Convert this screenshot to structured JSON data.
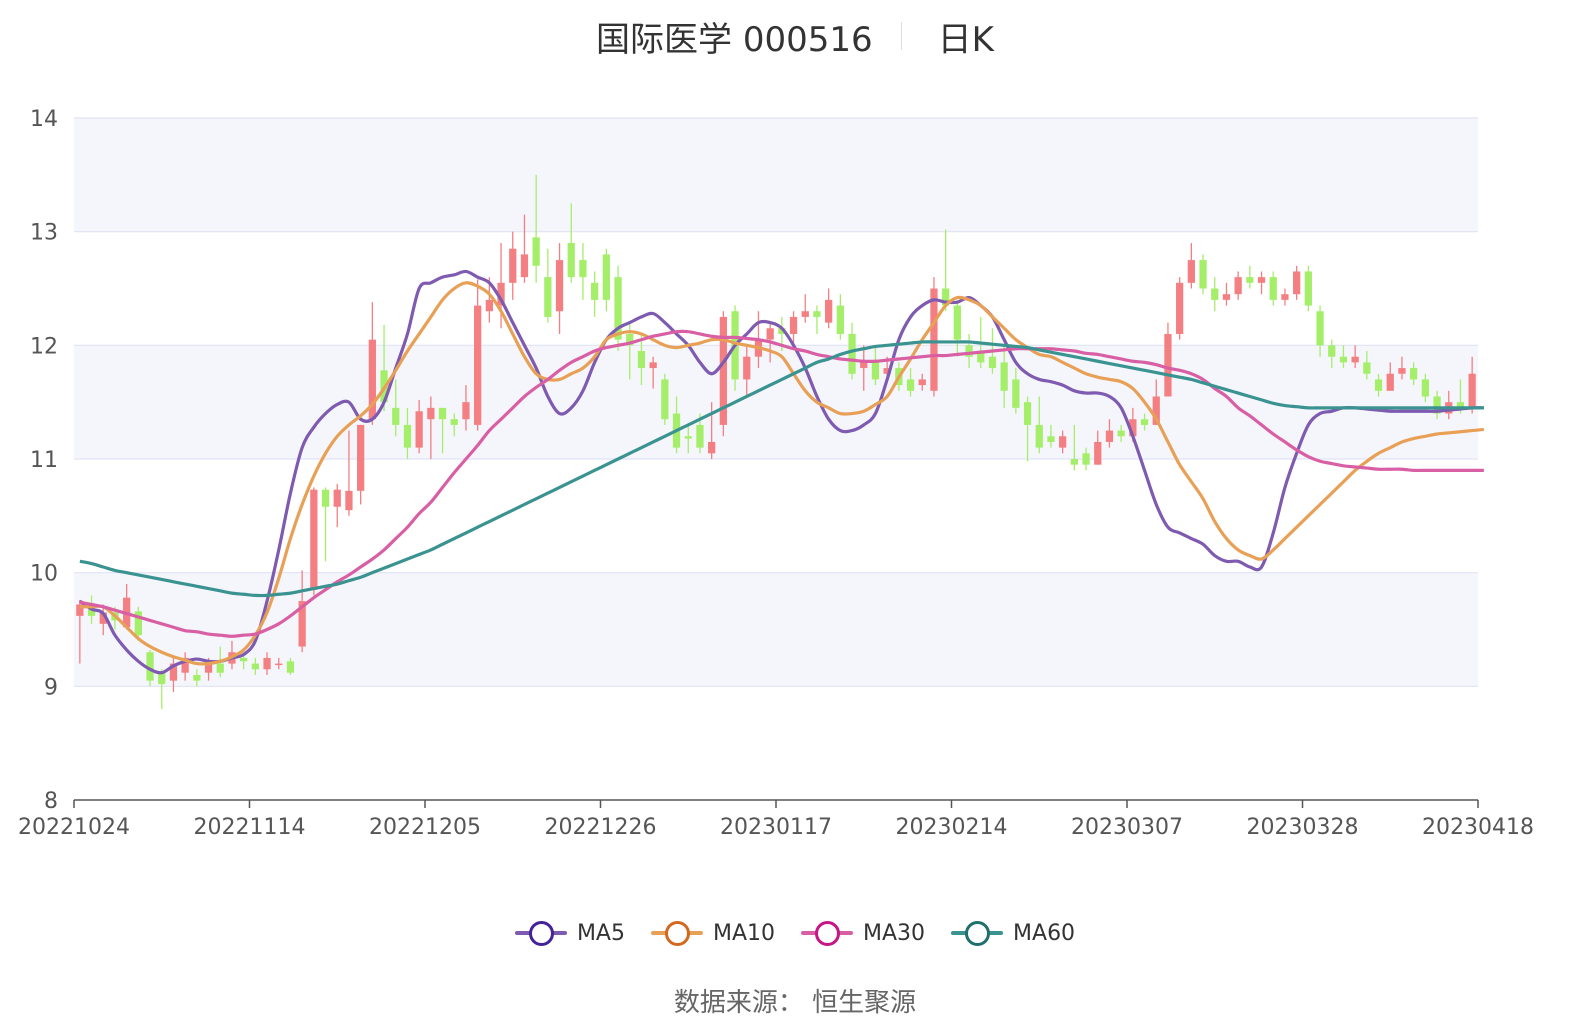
{
  "title": {
    "stock": "国际医学 000516",
    "period": "日K"
  },
  "source": "数据来源： 恒生聚源",
  "colors": {
    "up": "#f47f82",
    "down": "#a5ee6a",
    "band": "#f5f6fc",
    "gridline": "#dfe3f5"
  },
  "chart_data": {
    "type": "candlestick",
    "y_ticks": [
      "8",
      "9",
      "10",
      "11",
      "12",
      "13",
      "14"
    ],
    "ylim": [
      8,
      14
    ],
    "x_ticks": [
      "20221024",
      "20221114",
      "20221205",
      "20221226",
      "20230117",
      "20230214",
      "20230307",
      "20230328",
      "20230418"
    ],
    "x_tick_index": [
      0,
      15,
      30,
      45,
      60,
      75,
      90,
      105,
      120
    ],
    "candles": [
      [
        9.62,
        9.72,
        9.76,
        9.2
      ],
      [
        9.7,
        9.62,
        9.8,
        9.55
      ],
      [
        9.55,
        9.65,
        9.72,
        9.45
      ],
      [
        9.65,
        9.58,
        9.7,
        9.5
      ],
      [
        9.52,
        9.78,
        9.9,
        9.5
      ],
      [
        9.66,
        9.45,
        9.7,
        9.4
      ],
      [
        9.3,
        9.05,
        9.32,
        9.0
      ],
      [
        9.12,
        9.02,
        9.15,
        8.8
      ],
      [
        9.05,
        9.2,
        9.25,
        8.95
      ],
      [
        9.12,
        9.25,
        9.3,
        9.05
      ],
      [
        9.1,
        9.05,
        9.15,
        9.0
      ],
      [
        9.12,
        9.2,
        9.25,
        9.05
      ],
      [
        9.2,
        9.12,
        9.35,
        9.08
      ],
      [
        9.2,
        9.3,
        9.4,
        9.15
      ],
      [
        9.25,
        9.22,
        9.3,
        9.15
      ],
      [
        9.2,
        9.15,
        9.25,
        9.1
      ],
      [
        9.15,
        9.25,
        9.3,
        9.1
      ],
      [
        9.2,
        9.2,
        9.25,
        9.15
      ],
      [
        9.22,
        9.12,
        9.25,
        9.1
      ],
      [
        9.35,
        9.75,
        10.02,
        9.3
      ],
      [
        9.85,
        10.73,
        10.75,
        9.8
      ],
      [
        10.73,
        10.58,
        10.75,
        10.1
      ],
      [
        10.58,
        10.73,
        10.78,
        10.4
      ],
      [
        10.55,
        10.72,
        11.25,
        10.5
      ],
      [
        10.72,
        11.3,
        11.3,
        10.6
      ],
      [
        11.35,
        12.05,
        12.38,
        11.3
      ],
      [
        11.78,
        11.5,
        12.18,
        11.42
      ],
      [
        11.45,
        11.3,
        11.7,
        11.2
      ],
      [
        11.3,
        11.1,
        11.45,
        11.0
      ],
      [
        11.1,
        11.42,
        11.52,
        11.05
      ],
      [
        11.35,
        11.45,
        11.55,
        11.0
      ],
      [
        11.45,
        11.35,
        11.45,
        11.05
      ],
      [
        11.35,
        11.3,
        11.4,
        11.2
      ],
      [
        11.35,
        11.5,
        11.65,
        11.25
      ],
      [
        11.3,
        12.35,
        12.58,
        11.25
      ],
      [
        12.3,
        12.4,
        12.6,
        12.2
      ],
      [
        12.35,
        12.55,
        12.9,
        12.15
      ],
      [
        12.55,
        12.85,
        13.0,
        12.4
      ],
      [
        12.6,
        12.8,
        13.15,
        12.55
      ],
      [
        12.95,
        12.7,
        13.5,
        12.55
      ],
      [
        12.6,
        12.25,
        12.85,
        12.2
      ],
      [
        12.3,
        12.75,
        12.9,
        12.1
      ],
      [
        12.9,
        12.6,
        13.25,
        12.55
      ],
      [
        12.75,
        12.6,
        12.9,
        12.4
      ],
      [
        12.55,
        12.4,
        12.65,
        12.25
      ],
      [
        12.8,
        12.4,
        12.85,
        12.3
      ],
      [
        12.6,
        12.05,
        12.7,
        11.95
      ],
      [
        12.1,
        12.0,
        12.2,
        11.7
      ],
      [
        11.95,
        11.8,
        12.1,
        11.65
      ],
      [
        11.8,
        11.85,
        11.9,
        11.62
      ],
      [
        11.7,
        11.35,
        11.75,
        11.3
      ],
      [
        11.4,
        11.1,
        11.55,
        11.05
      ],
      [
        11.2,
        11.18,
        11.3,
        11.05
      ],
      [
        11.3,
        11.1,
        11.4,
        11.05
      ],
      [
        11.05,
        11.15,
        11.5,
        11.0
      ],
      [
        11.3,
        12.25,
        12.3,
        11.2
      ],
      [
        12.3,
        11.7,
        12.35,
        11.6
      ],
      [
        11.7,
        11.9,
        12.0,
        11.55
      ],
      [
        11.9,
        12.05,
        12.3,
        11.8
      ],
      [
        12.05,
        12.15,
        12.2,
        11.85
      ],
      [
        12.15,
        12.1,
        12.25,
        11.95
      ],
      [
        12.1,
        12.25,
        12.3,
        12.0
      ],
      [
        12.25,
        12.3,
        12.45,
        12.2
      ],
      [
        12.3,
        12.25,
        12.35,
        12.1
      ],
      [
        12.2,
        12.4,
        12.5,
        12.15
      ],
      [
        12.35,
        12.1,
        12.45,
        12.05
      ],
      [
        12.1,
        11.75,
        12.2,
        11.7
      ],
      [
        11.8,
        11.85,
        12.0,
        11.6
      ],
      [
        11.85,
        11.7,
        12.0,
        11.65
      ],
      [
        11.75,
        11.8,
        11.9,
        11.7
      ],
      [
        11.8,
        11.65,
        11.85,
        11.6
      ],
      [
        11.7,
        11.6,
        11.8,
        11.55
      ],
      [
        11.65,
        11.7,
        11.75,
        11.6
      ],
      [
        11.6,
        12.5,
        12.6,
        11.55
      ],
      [
        12.5,
        12.35,
        13.02,
        12.3
      ],
      [
        12.35,
        12.05,
        12.4,
        11.9
      ],
      [
        12.0,
        11.9,
        12.1,
        11.8
      ],
      [
        11.95,
        11.85,
        12.25,
        11.8
      ],
      [
        11.9,
        11.8,
        12.15,
        11.75
      ],
      [
        11.85,
        11.6,
        12.0,
        11.45
      ],
      [
        11.7,
        11.45,
        11.8,
        11.4
      ],
      [
        11.5,
        11.3,
        11.55,
        10.98
      ],
      [
        11.3,
        11.1,
        11.55,
        11.05
      ],
      [
        11.2,
        11.15,
        11.3,
        11.1
      ],
      [
        11.1,
        11.2,
        11.25,
        11.05
      ],
      [
        11.0,
        10.95,
        11.3,
        10.9
      ],
      [
        11.05,
        10.95,
        11.1,
        10.9
      ],
      [
        10.95,
        11.15,
        11.25,
        10.95
      ],
      [
        11.15,
        11.25,
        11.35,
        11.1
      ],
      [
        11.25,
        11.2,
        11.3,
        11.15
      ],
      [
        11.2,
        11.35,
        11.45,
        11.15
      ],
      [
        11.35,
        11.3,
        11.4,
        11.25
      ],
      [
        11.3,
        11.55,
        11.7,
        11.3
      ],
      [
        11.55,
        12.1,
        12.2,
        11.55
      ],
      [
        12.1,
        12.55,
        12.6,
        12.05
      ],
      [
        12.55,
        12.75,
        12.9,
        12.5
      ],
      [
        12.75,
        12.5,
        12.8,
        12.45
      ],
      [
        12.5,
        12.4,
        12.6,
        12.3
      ],
      [
        12.4,
        12.45,
        12.55,
        12.35
      ],
      [
        12.45,
        12.6,
        12.65,
        12.4
      ],
      [
        12.6,
        12.55,
        12.7,
        12.5
      ],
      [
        12.55,
        12.6,
        12.65,
        12.45
      ],
      [
        12.6,
        12.4,
        12.65,
        12.35
      ],
      [
        12.4,
        12.45,
        12.5,
        12.35
      ],
      [
        12.45,
        12.65,
        12.7,
        12.4
      ],
      [
        12.65,
        12.35,
        12.7,
        12.3
      ],
      [
        12.3,
        12.0,
        12.35,
        11.9
      ],
      [
        12.0,
        11.9,
        12.05,
        11.8
      ],
      [
        11.9,
        11.85,
        12.0,
        11.8
      ],
      [
        11.85,
        11.9,
        12.0,
        11.8
      ],
      [
        11.85,
        11.75,
        11.95,
        11.7
      ],
      [
        11.7,
        11.6,
        11.75,
        11.55
      ],
      [
        11.6,
        11.75,
        11.85,
        11.6
      ],
      [
        11.75,
        11.8,
        11.9,
        11.7
      ],
      [
        11.8,
        11.7,
        11.85,
        11.65
      ],
      [
        11.7,
        11.55,
        11.75,
        11.5
      ],
      [
        11.55,
        11.4,
        11.6,
        11.35
      ],
      [
        11.4,
        11.5,
        11.6,
        11.35
      ],
      [
        11.5,
        11.45,
        11.7,
        11.4
      ],
      [
        11.45,
        11.75,
        11.9,
        11.4
      ]
    ],
    "ma": [
      {
        "name": "MA5",
        "color": "#7e5ab0",
        "marker": "#43229a",
        "values": [
          9.75,
          9.68,
          9.64,
          9.45,
          9.32,
          9.22,
          9.15,
          9.12,
          9.18,
          9.22,
          9.24,
          9.22,
          9.22,
          9.25,
          9.28,
          9.4,
          9.75,
          10.2,
          10.7,
          11.1,
          11.28,
          11.4,
          11.48,
          11.5,
          11.35,
          11.35,
          11.5,
          11.8,
          12.1,
          12.5,
          12.55,
          12.6,
          12.62,
          12.65,
          12.6,
          12.55,
          12.4,
          12.2,
          12.0,
          11.8,
          11.55,
          11.4,
          11.45,
          11.6,
          11.85,
          12.05,
          12.15,
          12.2,
          12.25,
          12.28,
          12.2,
          12.1,
          12.0,
          11.85,
          11.75,
          11.85,
          12.0,
          12.1,
          12.2,
          12.2,
          12.15,
          12.0,
          11.8,
          11.55,
          11.35,
          11.25,
          11.25,
          11.3,
          11.4,
          11.7,
          12.05,
          12.25,
          12.35,
          12.4,
          12.38,
          12.38,
          12.42,
          12.35,
          12.25,
          12.05,
          11.85,
          11.75,
          11.7,
          11.68,
          11.65,
          11.6,
          11.58,
          11.58,
          11.55,
          11.45,
          11.2,
          10.9,
          10.6,
          10.4,
          10.35,
          10.3,
          10.25,
          10.15,
          10.1,
          10.1,
          10.05,
          10.05,
          10.35,
          10.75,
          11.05,
          11.3,
          11.4,
          11.42,
          11.45,
          11.45,
          11.44,
          11.43,
          11.42,
          11.42,
          11.42,
          11.42,
          11.42,
          11.43,
          11.44,
          11.45,
          11.45
        ]
      },
      {
        "name": "MA10",
        "color": "#e8a056",
        "marker": "#d2691e",
        "values": [
          9.7,
          9.7,
          9.7,
          9.62,
          9.52,
          9.42,
          9.35,
          9.3,
          9.26,
          9.23,
          9.2,
          9.2,
          9.22,
          9.26,
          9.32,
          9.45,
          9.65,
          9.95,
          10.3,
          10.6,
          10.85,
          11.05,
          11.2,
          11.3,
          11.38,
          11.48,
          11.62,
          11.78,
          11.95,
          12.1,
          12.25,
          12.4,
          12.5,
          12.55,
          12.52,
          12.45,
          12.3,
          12.1,
          11.9,
          11.75,
          11.7,
          11.7,
          11.75,
          11.8,
          11.9,
          12.05,
          12.1,
          12.12,
          12.1,
          12.05,
          12.0,
          11.98,
          12.0,
          12.02,
          12.05,
          12.05,
          12.02,
          12.0,
          11.98,
          11.95,
          11.9,
          11.75,
          11.6,
          11.5,
          11.45,
          11.4,
          11.4,
          11.42,
          11.48,
          11.55,
          11.72,
          11.88,
          12.05,
          12.2,
          12.35,
          12.42,
          12.4,
          12.35,
          12.25,
          12.15,
          12.05,
          11.98,
          11.92,
          11.9,
          11.85,
          11.8,
          11.75,
          11.72,
          11.7,
          11.68,
          11.62,
          11.5,
          11.35,
          11.15,
          10.95,
          10.8,
          10.65,
          10.45,
          10.3,
          10.2,
          10.15,
          10.12,
          10.2,
          10.3,
          10.4,
          10.5,
          10.6,
          10.7,
          10.8,
          10.9,
          10.98,
          11.05,
          11.1,
          11.15,
          11.18,
          11.2,
          11.22,
          11.23,
          11.24,
          11.25,
          11.26
        ]
      },
      {
        "name": "MA30",
        "color": "#d95fa5",
        "marker": "#c71585",
        "values": [
          9.74,
          9.72,
          9.7,
          9.67,
          9.64,
          9.61,
          9.58,
          9.55,
          9.52,
          9.49,
          9.48,
          9.46,
          9.45,
          9.44,
          9.45,
          9.46,
          9.5,
          9.55,
          9.62,
          9.7,
          9.78,
          9.85,
          9.92,
          9.98,
          10.05,
          10.12,
          10.2,
          10.3,
          10.4,
          10.52,
          10.62,
          10.75,
          10.88,
          11.0,
          11.12,
          11.25,
          11.35,
          11.45,
          11.55,
          11.63,
          11.7,
          11.78,
          11.85,
          11.9,
          11.95,
          11.98,
          12.0,
          12.02,
          12.05,
          12.08,
          12.1,
          12.12,
          12.12,
          12.1,
          12.08,
          12.07,
          12.07,
          12.06,
          12.05,
          12.03,
          12.0,
          11.97,
          11.95,
          11.92,
          11.9,
          11.88,
          11.87,
          11.86,
          11.86,
          11.87,
          11.88,
          11.89,
          11.9,
          11.91,
          11.91,
          11.92,
          11.93,
          11.94,
          11.95,
          11.96,
          11.97,
          11.97,
          11.97,
          11.97,
          11.96,
          11.95,
          11.93,
          11.92,
          11.9,
          11.88,
          11.86,
          11.85,
          11.83,
          11.8,
          11.78,
          11.75,
          11.7,
          11.62,
          11.55,
          11.45,
          11.38,
          11.3,
          11.22,
          11.15,
          11.08,
          11.02,
          10.98,
          10.96,
          10.94,
          10.93,
          10.92,
          10.91,
          10.91,
          10.91,
          10.9,
          10.9,
          10.9,
          10.9,
          10.9,
          10.9,
          10.9
        ]
      },
      {
        "name": "MA60",
        "color": "#3a9391",
        "marker": "#1f6f6d",
        "values": [
          10.1,
          10.08,
          10.05,
          10.02,
          10.0,
          9.98,
          9.96,
          9.94,
          9.92,
          9.9,
          9.88,
          9.86,
          9.84,
          9.82,
          9.81,
          9.8,
          9.8,
          9.81,
          9.82,
          9.84,
          9.86,
          9.88,
          9.9,
          9.93,
          9.96,
          10.0,
          10.04,
          10.08,
          10.12,
          10.16,
          10.2,
          10.25,
          10.3,
          10.35,
          10.4,
          10.45,
          10.5,
          10.55,
          10.6,
          10.65,
          10.7,
          10.75,
          10.8,
          10.85,
          10.9,
          10.95,
          11.0,
          11.05,
          11.1,
          11.15,
          11.2,
          11.25,
          11.3,
          11.35,
          11.4,
          11.45,
          11.5,
          11.55,
          11.6,
          11.65,
          11.7,
          11.75,
          11.8,
          11.85,
          11.88,
          11.92,
          11.95,
          11.97,
          11.99,
          12.0,
          12.01,
          12.02,
          12.03,
          12.03,
          12.03,
          12.03,
          12.03,
          12.02,
          12.01,
          12.0,
          11.99,
          11.98,
          11.96,
          11.94,
          11.92,
          11.9,
          11.88,
          11.86,
          11.84,
          11.82,
          11.8,
          11.78,
          11.76,
          11.74,
          11.72,
          11.7,
          11.67,
          11.64,
          11.61,
          11.58,
          11.55,
          11.52,
          11.49,
          11.47,
          11.46,
          11.45,
          11.45,
          11.45,
          11.45,
          11.45,
          11.45,
          11.45,
          11.45,
          11.45,
          11.45,
          11.45,
          11.45,
          11.45,
          11.45,
          11.45,
          11.45
        ]
      }
    ]
  }
}
